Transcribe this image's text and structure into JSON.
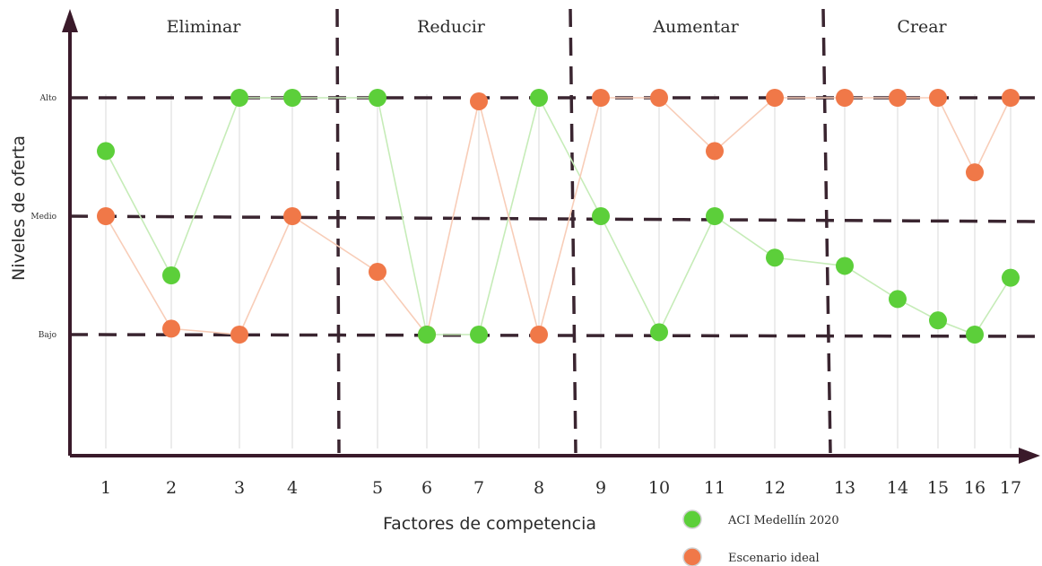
{
  "chart_data": {
    "type": "line",
    "xlabel": "Factores de competencia",
    "ylabel": "Niveles de oferta",
    "levels": [
      "Bajo",
      "Medio",
      "Alto"
    ],
    "sections": [
      "Eliminar",
      "Reducir",
      "Aumentar",
      "Crear"
    ],
    "categories": [
      "1",
      "2",
      "3",
      "4",
      "5",
      "6",
      "7",
      "8",
      "9",
      "10",
      "11",
      "12",
      "13",
      "14",
      "15",
      "16",
      "17"
    ],
    "ylim": [
      0,
      3.5
    ],
    "series": [
      {
        "name": "ACI Medellín 2020",
        "color": "#5ccf3a",
        "values": [
          2.55,
          1.5,
          3.0,
          3.0,
          3.0,
          1.0,
          1.0,
          3.0,
          2.0,
          1.02,
          2.0,
          1.65,
          1.58,
          1.3,
          1.12,
          1.0,
          1.48
        ]
      },
      {
        "name": "Escenario ideal",
        "color": "#f07848",
        "values": [
          2.0,
          1.05,
          1.0,
          2.0,
          1.53,
          1.0,
          2.97,
          1.0,
          3.0,
          3.0,
          2.55,
          3.0,
          3.0,
          3.0,
          3.0,
          2.37,
          3.0
        ]
      }
    ]
  }
}
